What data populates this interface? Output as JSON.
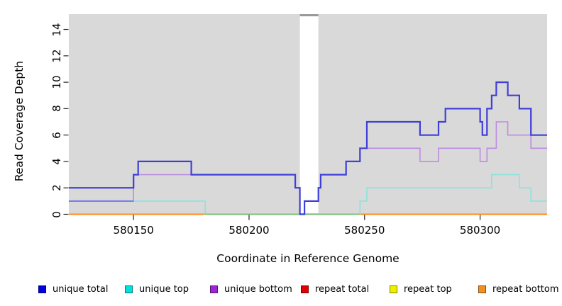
{
  "figure": {
    "page_background": "#ffffff",
    "plot_background": "#d9d9d9",
    "tick_color": "#222222"
  },
  "chart_data": {
    "type": "line",
    "step": "after",
    "title": "",
    "xlabel": "Coordinate in Reference Genome",
    "ylabel": "Read Coverage Depth",
    "xlim": [
      580122,
      580329
    ],
    "ylim": [
      0,
      15
    ],
    "grid": false,
    "legend_position": "bottom",
    "x_ticks": [
      580150,
      580200,
      580250,
      580300
    ],
    "y_ticks": [
      0,
      2,
      4,
      6,
      8,
      10,
      12,
      14
    ],
    "gap_region": {
      "x_start": 580222,
      "x_end": 580230,
      "fill": "#ffffff",
      "cap_color": "#999999"
    },
    "series": [
      {
        "name": "repeat total",
        "color": "#e00000",
        "width": 1.6,
        "points": [
          [
            580122,
            0
          ],
          [
            580329,
            0
          ]
        ]
      },
      {
        "name": "repeat top",
        "color": "#f0f000",
        "width": 1.6,
        "points": [
          [
            580122,
            0
          ],
          [
            580329,
            0
          ]
        ]
      },
      {
        "name": "repeat bottom",
        "color": "#ff8c1a",
        "width": 2,
        "points": [
          [
            580122,
            0
          ],
          [
            580329,
            0
          ]
        ]
      },
      {
        "name": "unique top",
        "color": "#8ae4da",
        "width": 1.6,
        "points": [
          [
            580122,
            1
          ],
          [
            580181,
            0
          ],
          [
            580248,
            1
          ],
          [
            580251,
            2
          ],
          [
            580305,
            3
          ],
          [
            580317,
            2
          ],
          [
            580322,
            1
          ],
          [
            580329,
            1
          ]
        ]
      },
      {
        "name": "unique bottom",
        "color": "#bd8ce0",
        "width": 1.6,
        "points": [
          [
            580122,
            1
          ],
          [
            580150,
            3
          ],
          [
            580220,
            2
          ],
          [
            580222,
            0
          ],
          [
            580224,
            1
          ],
          [
            580230,
            2
          ],
          [
            580231,
            3
          ],
          [
            580242,
            4
          ],
          [
            580248,
            5
          ],
          [
            580274,
            4
          ],
          [
            580282,
            5
          ],
          [
            580300,
            4
          ],
          [
            580303,
            5
          ],
          [
            580307,
            7
          ],
          [
            580312,
            6
          ],
          [
            580322,
            5
          ],
          [
            580329,
            5
          ]
        ]
      },
      {
        "name": "unique total",
        "color": "#3f3fd8",
        "width": 2.2,
        "points": [
          [
            580122,
            2
          ],
          [
            580150,
            3
          ],
          [
            580152,
            4
          ],
          [
            580175,
            3
          ],
          [
            580220,
            2
          ],
          [
            580222,
            0
          ],
          [
            580224,
            1
          ],
          [
            580230,
            2
          ],
          [
            580231,
            3
          ],
          [
            580242,
            4
          ],
          [
            580248,
            5
          ],
          [
            580251,
            7
          ],
          [
            580274,
            6
          ],
          [
            580282,
            7
          ],
          [
            580285,
            8
          ],
          [
            580300,
            7
          ],
          [
            580301,
            6
          ],
          [
            580303,
            8
          ],
          [
            580305,
            9
          ],
          [
            580307,
            10
          ],
          [
            580312,
            9
          ],
          [
            580317,
            8
          ],
          [
            580322,
            6
          ],
          [
            580329,
            6
          ]
        ]
      }
    ],
    "overlap_segments": [
      {
        "y": 1,
        "x_start": 580122,
        "x_end": 580150,
        "color": "#7a76ea",
        "width": 2,
        "series_overlapping": [
          "unique top",
          "unique bottom"
        ]
      },
      {
        "y": 0,
        "x_start": 580181,
        "x_end": 580248,
        "color": "#7cbe7c",
        "width": 1.8,
        "series_overlapping": [
          "unique top",
          "repeat bottom"
        ]
      }
    ]
  },
  "legend": {
    "items": [
      {
        "label": "unique total",
        "color": "#0000e0"
      },
      {
        "label": "unique top",
        "color": "#00e0e0"
      },
      {
        "label": "unique bottom",
        "color": "#9c27d0"
      },
      {
        "label": "repeat total",
        "color": "#e00000"
      },
      {
        "label": "repeat top",
        "color": "#eeee00"
      },
      {
        "label": "repeat bottom",
        "color": "#f09020"
      }
    ]
  }
}
